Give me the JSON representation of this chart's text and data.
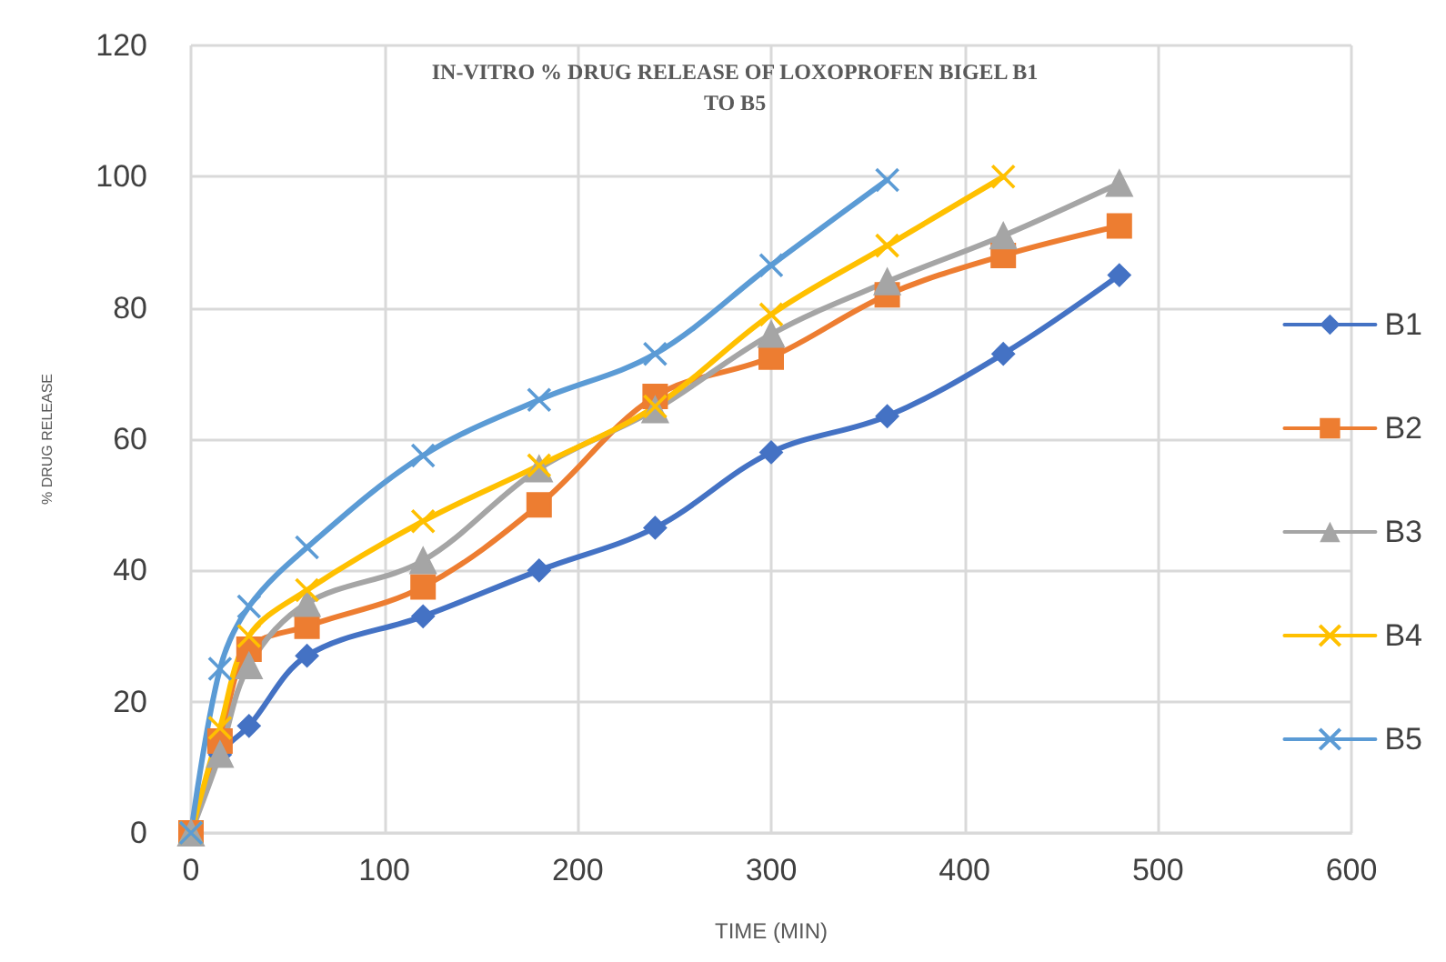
{
  "chart_data": {
    "type": "line",
    "title": "IN-VITRO % DRUG RELEASE OF LOXOPROFEN BIGEL B1\nTO B5",
    "xlabel": "TIME (MIN)",
    "ylabel": "% DRUG RELEASE",
    "x": [
      0,
      15,
      30,
      60,
      120,
      180,
      240,
      300,
      360,
      420,
      480
    ],
    "series": [
      {
        "name": "B1",
        "color": "#4472c4",
        "marker": "diamond",
        "values": [
          0,
          11.9,
          16.3,
          27,
          33,
          40,
          46.5,
          58,
          63.5,
          73,
          85
        ]
      },
      {
        "name": "B2",
        "color": "#ed7d31",
        "marker": "square",
        "values": [
          0,
          14,
          28,
          31.5,
          37.5,
          50,
          66.5,
          72.5,
          82,
          88,
          92.5
        ]
      },
      {
        "name": "B3",
        "color": "#a5a5a5",
        "marker": "triangle",
        "values": [
          0,
          12,
          25.5,
          35,
          41.5,
          55.5,
          64.5,
          76,
          84,
          91,
          99
        ]
      },
      {
        "name": "B4",
        "color": "#ffc000",
        "marker": "cross",
        "values": [
          0,
          16,
          30,
          37,
          47.5,
          56,
          65,
          79,
          89.5,
          100,
          null
        ]
      },
      {
        "name": "B5",
        "color": "#5b9bd5",
        "marker": "cross",
        "values": [
          0,
          25,
          34.5,
          43.5,
          57.5,
          66,
          73,
          86.5,
          99.5,
          null,
          null
        ]
      }
    ],
    "xlim": [
      0,
      600
    ],
    "xticks": [
      0,
      100,
      200,
      300,
      400,
      500,
      600
    ],
    "ylim": [
      0,
      120
    ],
    "yticks": [
      0,
      20,
      40,
      60,
      80,
      100,
      120
    ],
    "grid": true,
    "legend": "right",
    "line_style": "solid"
  }
}
